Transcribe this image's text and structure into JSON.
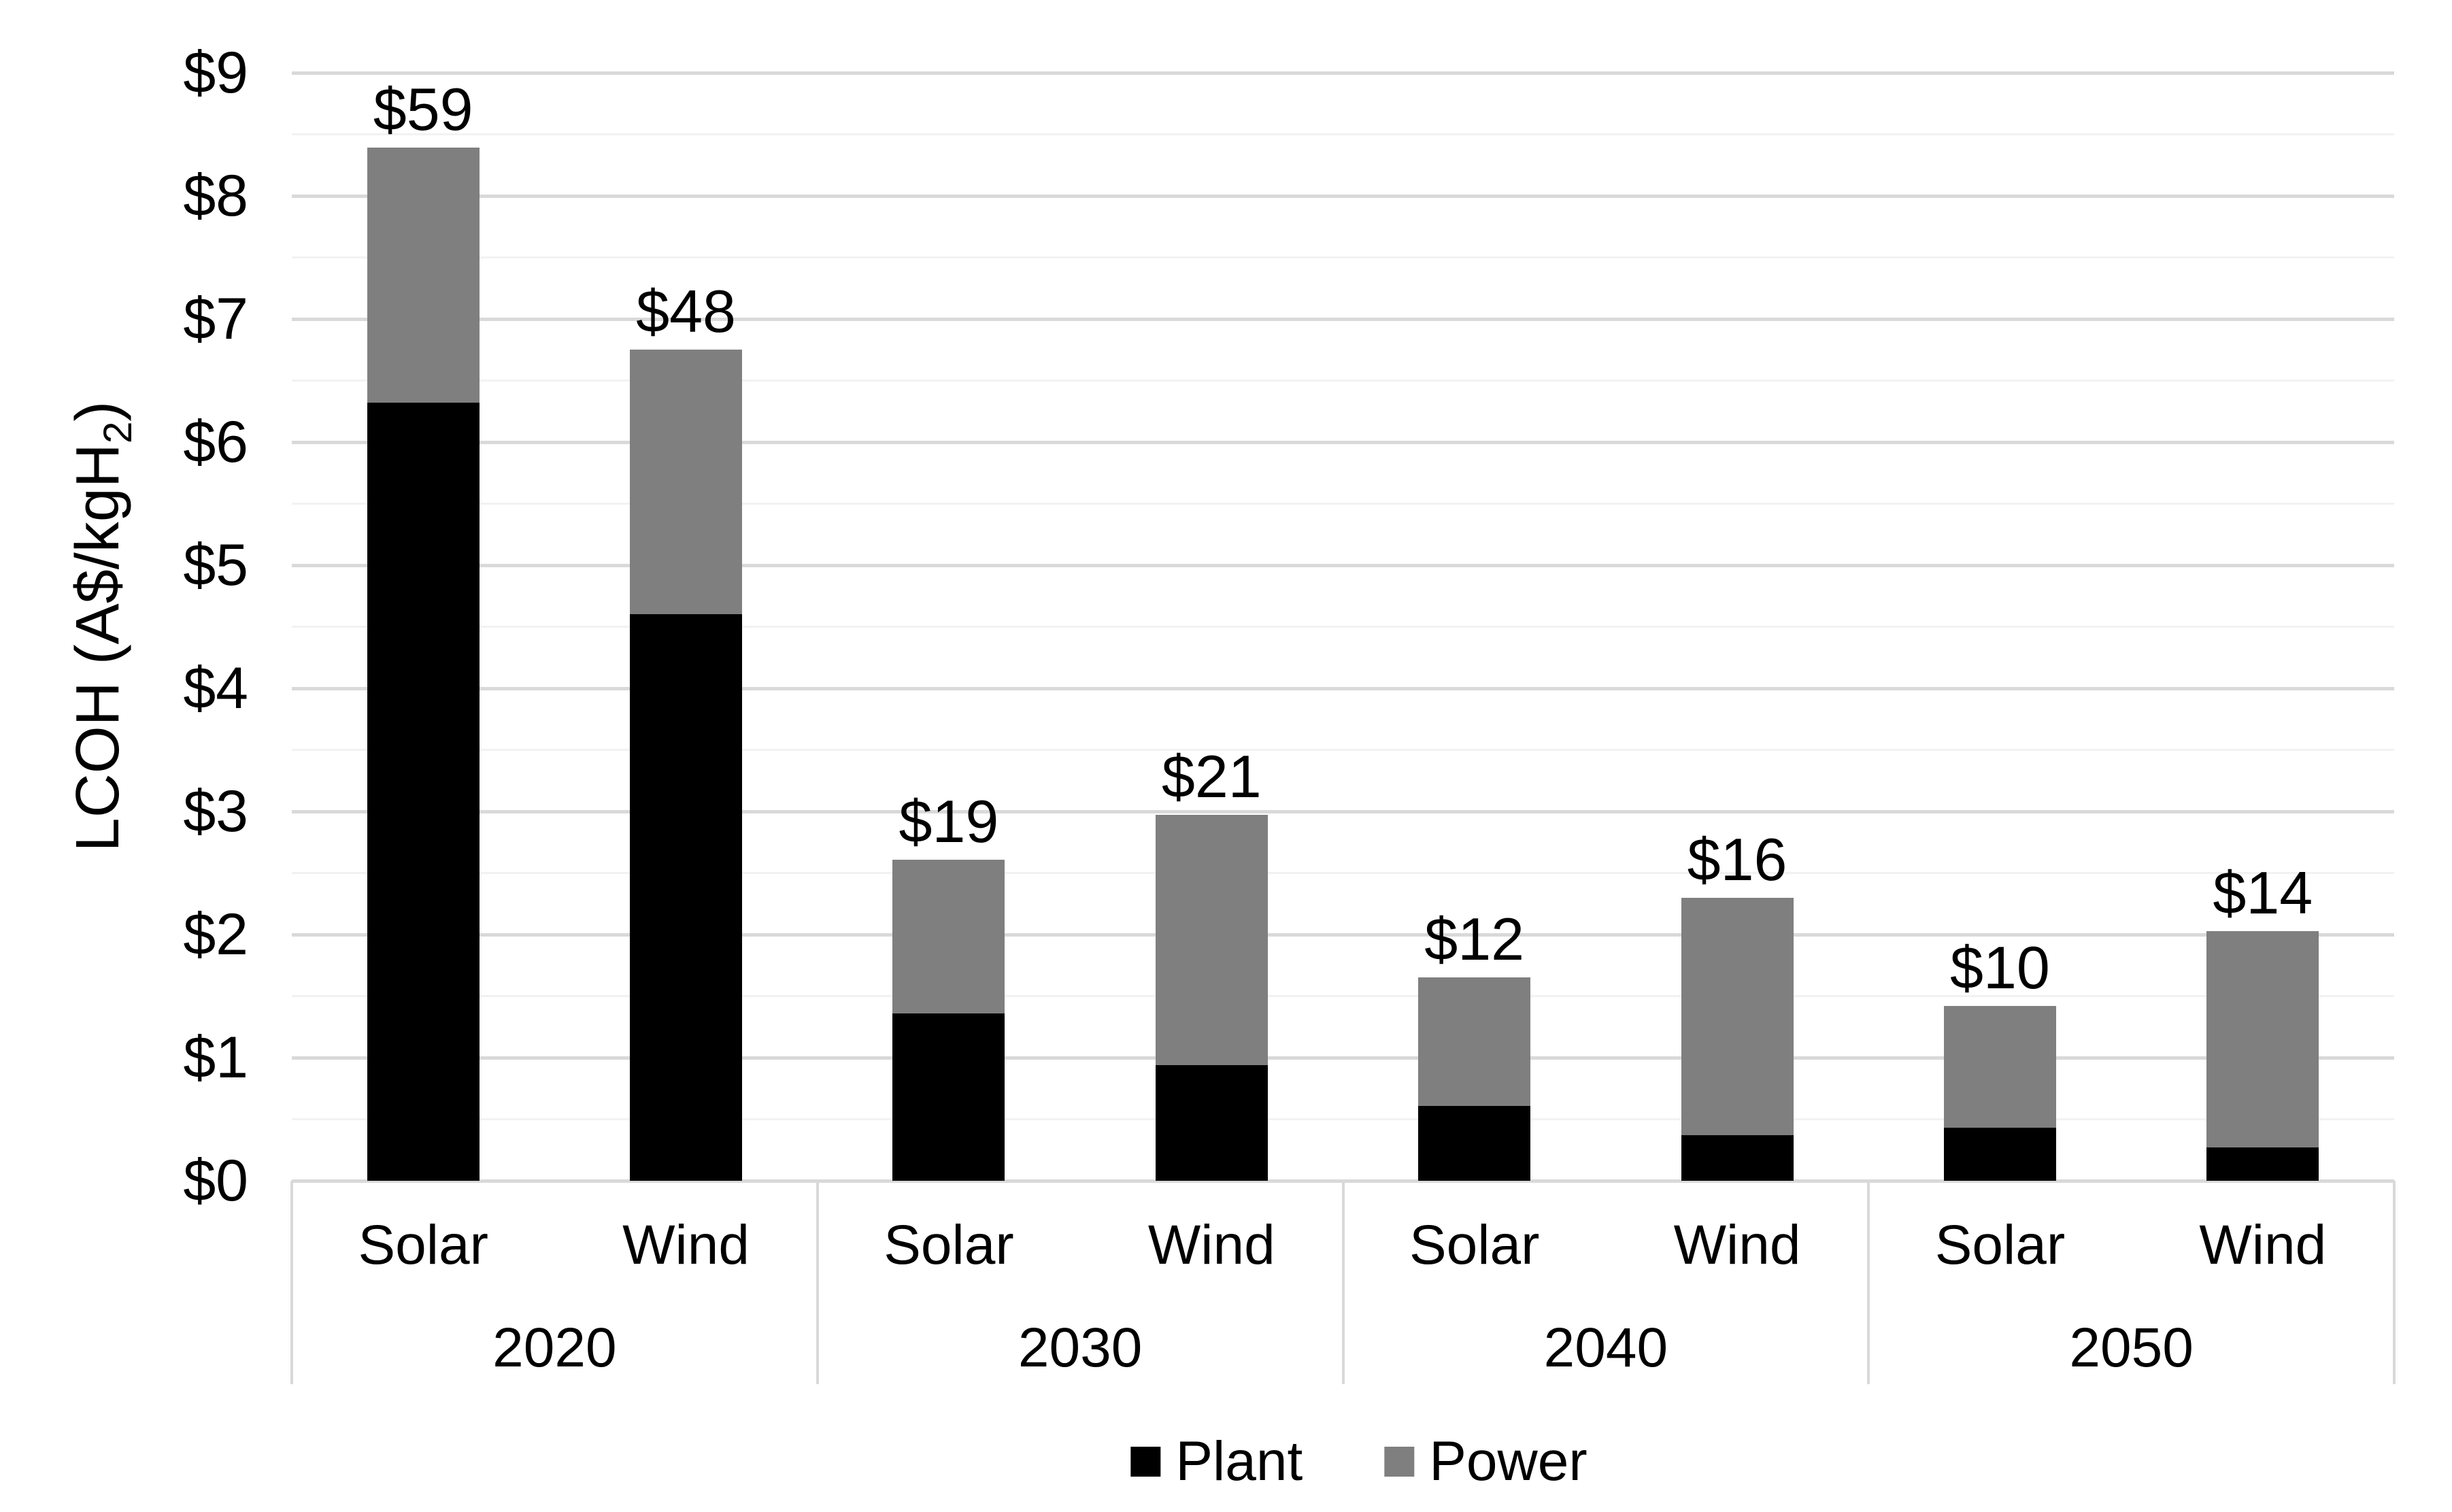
{
  "chart_data": {
    "type": "bar",
    "stacked": true,
    "grid": "on",
    "legend_position": "bottom",
    "y_axis": {
      "title_pre": "LCOH (A$/kgH",
      "title_sub": "2",
      "title_post": ")",
      "min": 0,
      "max": 9,
      "major_step": 1,
      "minor_step": 0.5,
      "ticks": [
        "$0",
        "$1",
        "$2",
        "$3",
        "$4",
        "$5",
        "$6",
        "$7",
        "$8",
        "$9"
      ]
    },
    "series_names": [
      "Plant",
      "Power"
    ],
    "groups": [
      {
        "year": "2020",
        "bars": [
          {
            "tech": "Solar",
            "plant": 6.32,
            "power": 2.07,
            "total_label": "$59"
          },
          {
            "tech": "Wind",
            "plant": 4.6,
            "power": 2.15,
            "total_label": "$48"
          }
        ]
      },
      {
        "year": "2030",
        "bars": [
          {
            "tech": "Solar",
            "plant": 1.36,
            "power": 1.25,
            "total_label": "$19"
          },
          {
            "tech": "Wind",
            "plant": 0.94,
            "power": 2.03,
            "total_label": "$21"
          }
        ]
      },
      {
        "year": "2040",
        "bars": [
          {
            "tech": "Solar",
            "plant": 0.61,
            "power": 1.04,
            "total_label": "$12"
          },
          {
            "tech": "Wind",
            "plant": 0.37,
            "power": 1.93,
            "total_label": "$16"
          }
        ]
      },
      {
        "year": "2050",
        "bars": [
          {
            "tech": "Solar",
            "plant": 0.43,
            "power": 0.99,
            "total_label": "$10"
          },
          {
            "tech": "Wind",
            "plant": 0.27,
            "power": 1.76,
            "total_label": "$14"
          }
        ]
      }
    ],
    "colors": {
      "plant": "#000000",
      "power": "#7f7f7f",
      "gridline_major": "#d9d9d9",
      "gridline_minor": "#f2f2f2",
      "axis_line": "#d9d9d9",
      "text": "#000000"
    },
    "legend": [
      {
        "label": "Plant",
        "color_key": "plant"
      },
      {
        "label": "Power",
        "color_key": "power"
      }
    ]
  }
}
